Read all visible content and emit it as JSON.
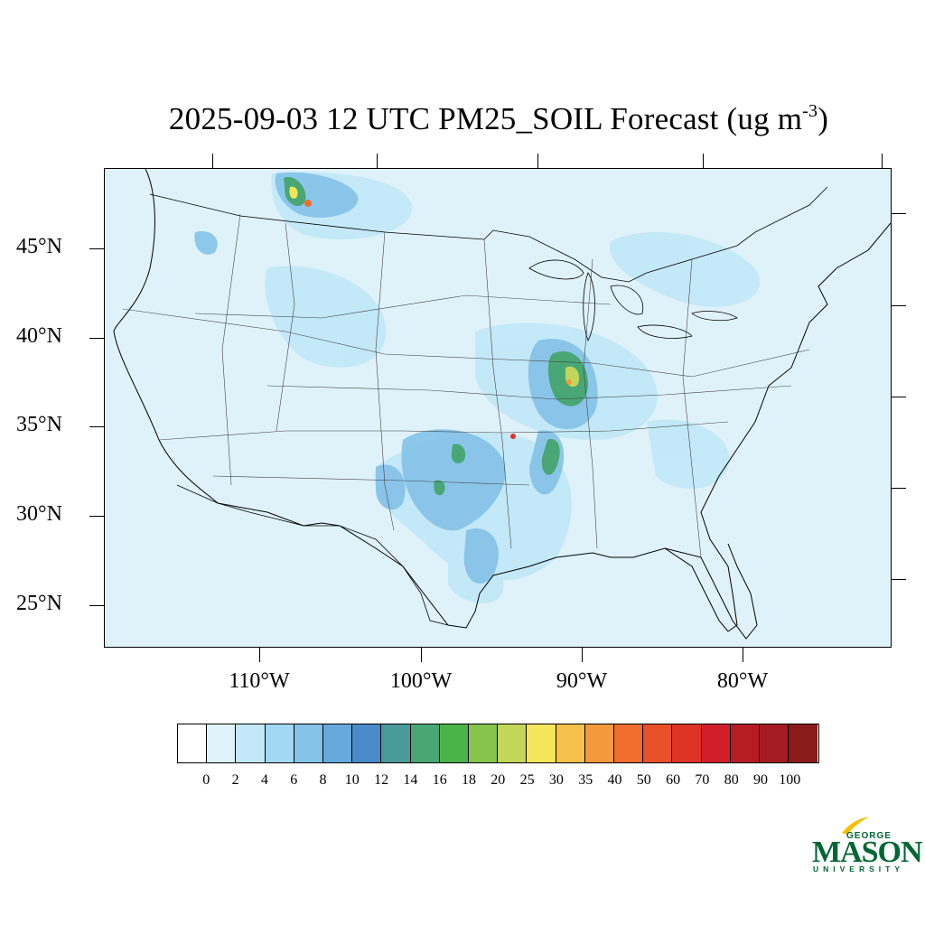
{
  "title": {
    "main": "2025-09-03 12 UTC PM25_SOIL Forecast (ug m",
    "sup": "-3",
    "close": ")"
  },
  "axes": {
    "lat_labels": [
      "45°N",
      "40°N",
      "35°N",
      "30°N",
      "25°N"
    ],
    "lon_labels": [
      "110°W",
      "100°W",
      "90°W",
      "80°W"
    ]
  },
  "colorbar": {
    "levels": [
      "0",
      "2",
      "4",
      "6",
      "8",
      "10",
      "12",
      "14",
      "16",
      "18",
      "20",
      "25",
      "30",
      "35",
      "40",
      "50",
      "60",
      "70",
      "80",
      "90",
      "100"
    ],
    "colors": [
      "#ffffff",
      "#e0f3fb",
      "#c2e8f8",
      "#a2d8f4",
      "#84c2e8",
      "#67a9dc",
      "#4a8bc9",
      "#4b9a9a",
      "#48a774",
      "#4ab44a",
      "#86c44d",
      "#c4d65a",
      "#f4e65a",
      "#f7c24a",
      "#f39a3c",
      "#ef6d2e",
      "#e8512a",
      "#de3327",
      "#d01f2a",
      "#b71c24",
      "#a51b21",
      "#8b1a1a"
    ]
  },
  "map": {
    "background": "#dff2fa"
  },
  "logo": {
    "george": "GEORGE",
    "mason": "MASON",
    "university": "UNIVERSITY",
    "color": "#006633",
    "accent": "#f2c200"
  }
}
